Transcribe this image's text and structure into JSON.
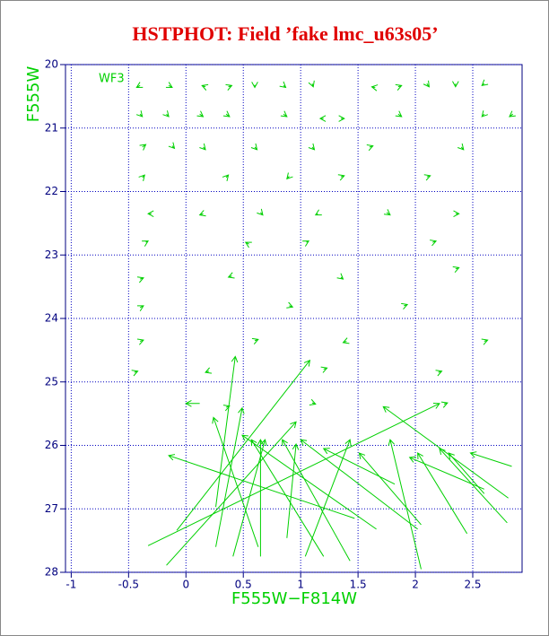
{
  "chart_data": {
    "type": "quiver",
    "title": "HSTPHOT: Field ’fake lmc_u63s05’",
    "xlabel": "F555W−F814W",
    "ylabel": "F555W",
    "annotation": "WF3",
    "color": "#00d000",
    "grid": true,
    "y_inverted": true,
    "xlim": [
      -1.05,
      2.93
    ],
    "ylim": [
      20,
      28
    ],
    "xticks": [
      -1,
      -0.5,
      0,
      0.5,
      1,
      1.5,
      2,
      2.5
    ],
    "yticks": [
      20,
      21,
      22,
      23,
      24,
      25,
      26,
      27,
      28
    ],
    "x": [
      -0.4,
      -0.15,
      0.17,
      0.37,
      0.6,
      0.85,
      1.1,
      1.65,
      1.85,
      2.1,
      2.35,
      2.6,
      -0.4,
      -0.17,
      0.12,
      0.35,
      0.85,
      1.2,
      1.35,
      1.85,
      2.6,
      2.85,
      -0.38,
      -0.12,
      0.15,
      0.6,
      1.1,
      1.6,
      2.4,
      -0.38,
      0.35,
      0.9,
      1.35,
      2.1,
      -0.3,
      0.15,
      0.65,
      1.15,
      1.75,
      2.35,
      -0.35,
      0.55,
      1.05,
      2.15,
      -0.4,
      0.4,
      1.35,
      2.35,
      -0.4,
      0.9,
      1.9,
      -0.4,
      0.6,
      1.4,
      2.6,
      -0.45,
      0.2,
      1.2,
      2.2,
      0.35,
      1.1,
      2.25,
      0.26,
      -0.08,
      0.12,
      -0.33,
      2.81,
      1.47,
      0.63,
      0.26,
      -0.17,
      1.66,
      1.2,
      0.41,
      1.43,
      2.02,
      0.65,
      1.04,
      2.05,
      2.05,
      1.82,
      2.45,
      2.8,
      2.84,
      2.6,
      2.6,
      0.88
    ],
    "y": [
      20.33,
      20.33,
      20.35,
      20.35,
      20.32,
      20.33,
      20.3,
      20.36,
      20.35,
      20.3,
      20.3,
      20.3,
      20.78,
      20.78,
      20.78,
      20.78,
      20.78,
      20.85,
      20.85,
      20.78,
      20.78,
      20.78,
      21.3,
      21.28,
      21.3,
      21.3,
      21.3,
      21.3,
      21.3,
      21.78,
      21.78,
      21.76,
      21.77,
      21.77,
      22.35,
      22.35,
      22.33,
      22.35,
      22.33,
      22.35,
      22.8,
      22.83,
      22.8,
      22.8,
      23.38,
      23.33,
      23.35,
      23.22,
      23.83,
      23.8,
      23.8,
      24.36,
      24.35,
      24.36,
      24.36,
      24.85,
      24.83,
      24.8,
      24.85,
      25.4,
      25.33,
      25.35,
      26.97,
      27.34,
      25.34,
      27.58,
      26.83,
      27.15,
      27.6,
      27.6,
      27.89,
      27.32,
      27.75,
      27.75,
      27.82,
      27.32,
      27.75,
      27.75,
      27.95,
      27.25,
      26.61,
      27.39,
      27.22,
      26.33,
      26.76,
      26.69,
      27.46
    ],
    "x_end": [
      -0.43,
      -0.12,
      0.14,
      0.4,
      0.6,
      0.87,
      1.11,
      1.62,
      1.88,
      2.12,
      2.35,
      2.58,
      -0.38,
      -0.15,
      0.15,
      0.38,
      0.88,
      1.17,
      1.38,
      1.88,
      2.58,
      2.82,
      -0.35,
      -0.1,
      0.17,
      0.62,
      1.12,
      1.63,
      2.42,
      -0.36,
      0.37,
      0.88,
      1.38,
      2.13,
      -0.33,
      0.12,
      0.67,
      1.13,
      1.78,
      2.38,
      -0.33,
      0.52,
      1.07,
      2.18,
      -0.37,
      0.37,
      1.37,
      2.38,
      -0.37,
      0.93,
      1.93,
      -0.37,
      0.63,
      1.37,
      2.63,
      -0.42,
      0.17,
      1.23,
      2.23,
      0.38,
      1.13,
      2.28,
      0.43,
      1.08,
      0.0,
      2.21,
      1.72,
      -0.15,
      0.24,
      0.49,
      0.96,
      0.49,
      0.57,
      0.69,
      0.84,
      1.0,
      0.65,
      1.43,
      1.78,
      1.51,
      1.2,
      2.02,
      2.21,
      2.48,
      2.29,
      1.95,
      0.96
    ],
    "y_end": [
      20.36,
      20.36,
      20.33,
      20.33,
      20.36,
      20.36,
      20.35,
      20.35,
      20.33,
      20.35,
      20.35,
      20.33,
      20.82,
      20.82,
      20.82,
      20.82,
      20.82,
      20.85,
      20.85,
      20.82,
      20.82,
      20.82,
      21.26,
      21.32,
      21.34,
      21.34,
      21.34,
      21.28,
      21.34,
      21.74,
      21.74,
      21.8,
      21.75,
      21.75,
      22.35,
      22.37,
      22.37,
      22.37,
      22.37,
      22.35,
      22.78,
      22.8,
      22.78,
      22.78,
      23.36,
      23.35,
      23.38,
      23.2,
      23.8,
      23.82,
      23.78,
      24.34,
      24.33,
      24.38,
      24.34,
      24.83,
      24.85,
      24.78,
      24.83,
      25.38,
      25.35,
      25.33,
      24.6,
      24.66,
      25.34,
      25.34,
      25.39,
      26.16,
      25.56,
      25.41,
      25.63,
      25.84,
      25.91,
      25.91,
      25.91,
      25.91,
      25.91,
      25.91,
      25.91,
      26.12,
      26.05,
      26.12,
      26.05,
      26.12,
      26.12,
      26.19,
      25.98
    ]
  }
}
